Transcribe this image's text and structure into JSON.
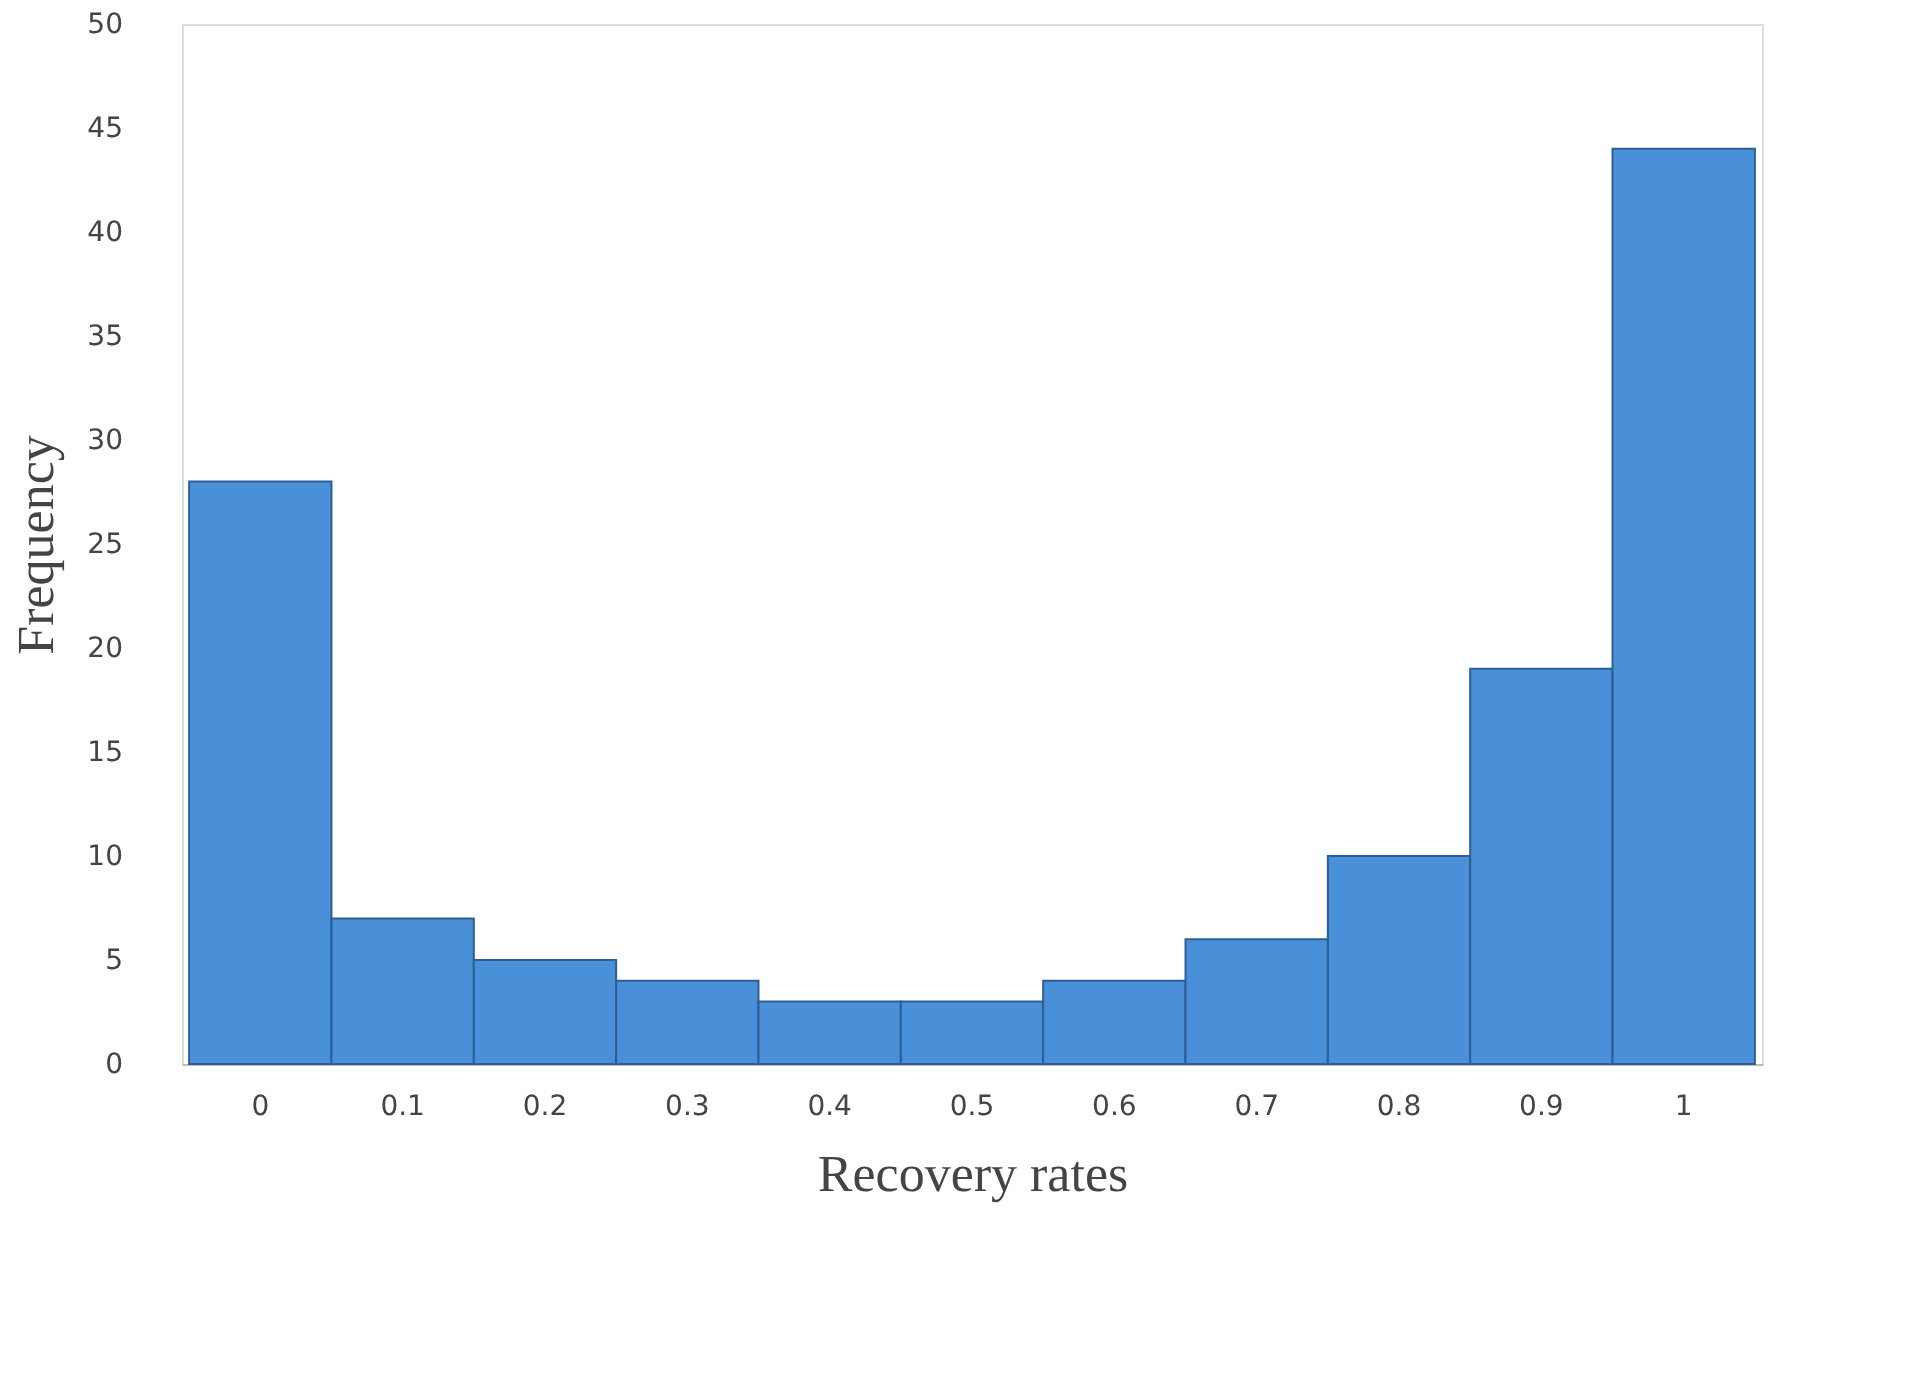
{
  "chart_data": {
    "type": "bar",
    "xlabel": "Recovery rates",
    "ylabel": "Frequency",
    "categories": [
      "0",
      "0.1",
      "0.2",
      "0.3",
      "0.4",
      "0.5",
      "0.6",
      "0.7",
      "0.8",
      "0.9",
      "1"
    ],
    "values": [
      28,
      7,
      5,
      4,
      3,
      3,
      4,
      6,
      10,
      19,
      44
    ],
    "color": "#4a90d9",
    "ylim": [
      0,
      50
    ],
    "yticks": [
      0,
      5,
      10,
      15,
      20,
      25,
      30,
      35,
      40,
      45,
      50
    ],
    "grid": false
  }
}
